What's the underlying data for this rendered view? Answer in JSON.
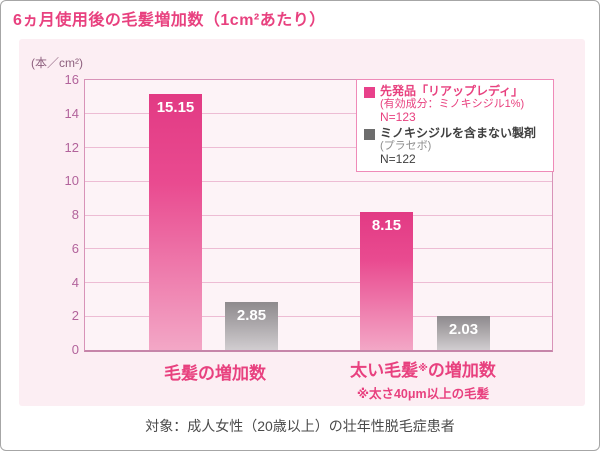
{
  "title": "6ヵ月使用後の毛髪増加数（1cm²あたり）",
  "caption": "対象：成人女性（20歳以上）の壮年性脱毛症患者",
  "chart": {
    "unit_label": "(本／cm²)",
    "group1_label": "毛髪の増加数",
    "group2_label_prefix": "太い毛髪",
    "group2_label_sup": "※",
    "group2_label_suffix": "の増加数",
    "group2_note": "※太さ40μm以上の毛髪"
  },
  "legend": {
    "item1": {
      "line1": "先発品「リアップレディ」",
      "line2": "(有効成分：ミノキシジル1%)",
      "line3": "N=123"
    },
    "item2": {
      "line1": "ミノキシジルを含まない製剤",
      "line2": "(プラセボ)",
      "line3": "N=122"
    }
  },
  "colors": {
    "accent_pink": "#e8417f",
    "bar_pink_top": "#e23a84",
    "bar_pink_bottom": "#f3a7c6",
    "bar_gray_top": "#8e8a8d",
    "bar_gray_bottom": "#d1cdd0",
    "panel_bg": "#fceef3",
    "plot_border": "#d893b8",
    "gridline": "#edbcd4",
    "tick_text": "#b2639b",
    "legend_border": "#ef8ab8",
    "caption_text": "#4a4a4a"
  },
  "chart_data": {
    "type": "bar",
    "title": "6ヵ月使用後の毛髪増加数（1cm²あたり）",
    "ylabel": "(本／cm²)",
    "categories": [
      "毛髪の増加数",
      "太い毛髪※の増加数"
    ],
    "category_footnote": "※太さ40μm以上の毛髪",
    "series": [
      {
        "name": "先発品「リアップレディ」(有効成分：ミノキシジル1%) N=123",
        "color": "#e8418a",
        "values": [
          15.15,
          8.15
        ]
      },
      {
        "name": "ミノキシジルを含まない製剤(プラセボ) N=122",
        "color": "#8e8a8d",
        "values": [
          2.85,
          2.03
        ]
      }
    ],
    "ylim": [
      0,
      16
    ],
    "yticks": [
      0,
      2,
      4,
      6,
      8,
      10,
      12,
      14,
      16
    ],
    "grid": true,
    "legend_position": "top-right",
    "subject_note": "対象：成人女性（20歳以上）の壮年性脱毛症患者"
  }
}
